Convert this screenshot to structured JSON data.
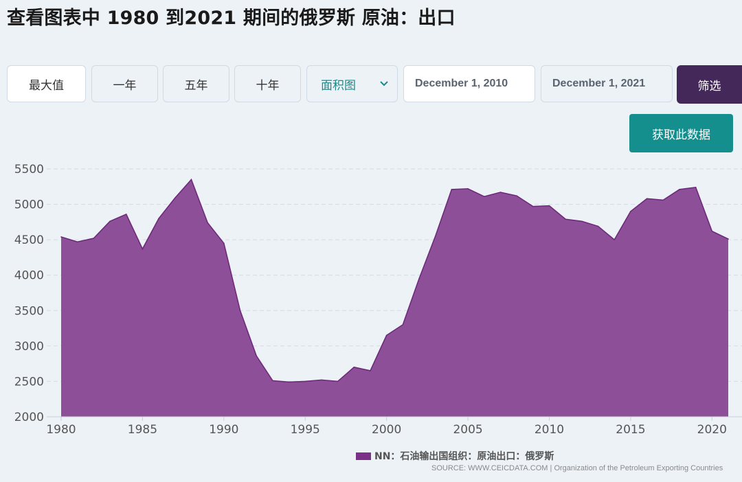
{
  "page": {
    "title": "查看图表中 1980 到2021 期间的俄罗斯 原油：出口"
  },
  "toolbar": {
    "range_buttons": [
      "最大值",
      "一年",
      "五年",
      "十年"
    ],
    "chart_type": "面积图",
    "start_date": "December 1, 2010",
    "end_date": "December 1, 2021",
    "filter_label": "筛选",
    "get_data_label": "获取此数据"
  },
  "colors": {
    "area_fill": "#8e4f99",
    "area_line": "#6d2a7a",
    "legend_swatch": "#7c3188",
    "filter_button": "#44285a",
    "get_data_button": "#158e8e",
    "accent_text": "#1a8a8a"
  },
  "legend": {
    "label": "NN：石油输出国组织：原油出口：俄罗斯"
  },
  "source": "SOURCE: WWW.CEICDATA.COM | Organization of the Petroleum Exporting Countries",
  "chart_data": {
    "type": "area",
    "x": [
      1980,
      1981,
      1982,
      1983,
      1984,
      1985,
      1986,
      1987,
      1988,
      1989,
      1990,
      1991,
      1992,
      1993,
      1994,
      1995,
      1996,
      1997,
      1998,
      1999,
      2000,
      2001,
      2002,
      2003,
      2004,
      2005,
      2006,
      2007,
      2008,
      2009,
      2010,
      2011,
      2012,
      2013,
      2014,
      2015,
      2016,
      2017,
      2018,
      2019,
      2020,
      2021
    ],
    "series": [
      {
        "name": "NN：石油输出国组织：原油出口：俄罗斯",
        "values": [
          4540,
          4470,
          4520,
          4760,
          4860,
          4370,
          4800,
          5090,
          5350,
          4740,
          4450,
          3500,
          2860,
          2510,
          2490,
          2500,
          2520,
          2500,
          2700,
          2650,
          3150,
          3300,
          3950,
          4550,
          5210,
          5220,
          5110,
          5170,
          5120,
          4970,
          4980,
          4790,
          4760,
          4690,
          4500,
          4900,
          5080,
          5060,
          5210,
          5240,
          4620,
          4510
        ]
      }
    ],
    "xlim": [
      1980,
      2021
    ],
    "ylim": [
      2000,
      5500
    ],
    "x_ticks": [
      "1980",
      "1985",
      "1990",
      "1995",
      "2000",
      "2005",
      "2010",
      "2015",
      "2020"
    ],
    "y_ticks": [
      "2000",
      "2500",
      "3000",
      "3500",
      "4000",
      "4500",
      "5000",
      "5500"
    ],
    "grid": true,
    "legend_position": "bottom-right"
  }
}
